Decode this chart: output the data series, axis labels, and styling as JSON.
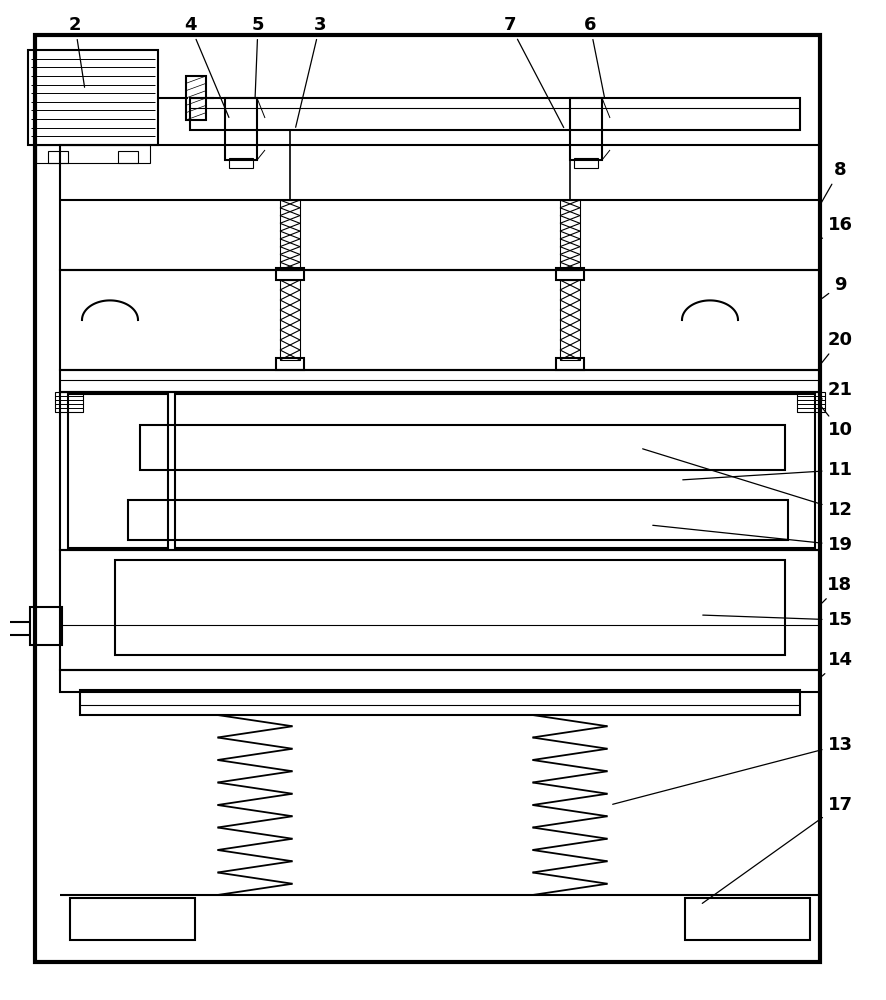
{
  "fig_width": 8.87,
  "fig_height": 10.0,
  "dpi": 100,
  "bg_color": "#ffffff",
  "lc": "#000000",
  "lw": 1.5,
  "tlw": 0.8,
  "fs": 13,
  "purple": "#800080",
  "green": "#008000"
}
